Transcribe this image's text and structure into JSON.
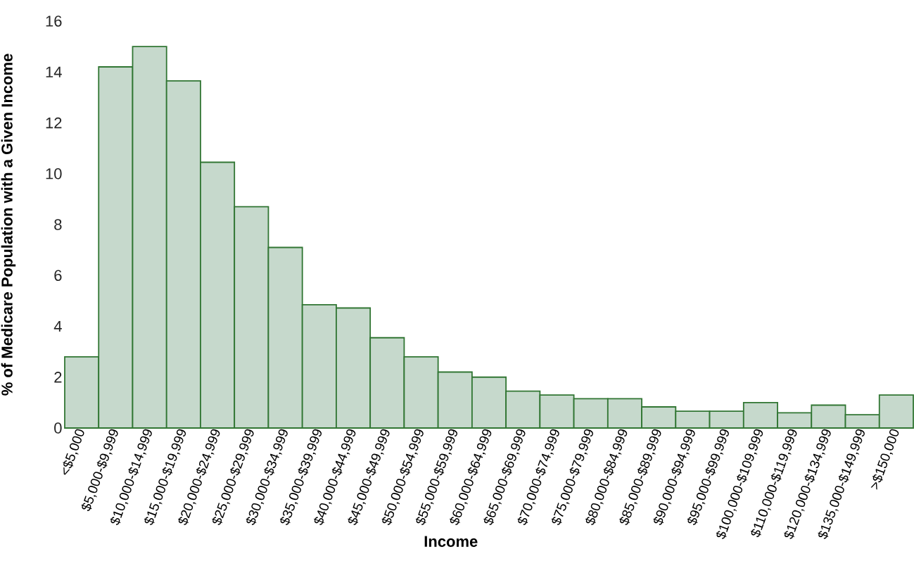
{
  "chart_data": {
    "type": "bar",
    "xlabel": "Income",
    "ylabel": "% of Medicare Population with a Given Income",
    "categories": [
      "<$5,000",
      "$5,000-$9,999",
      "$10,000-$14,999",
      "$15,000-$19,999",
      "$20,000-$24,999",
      "$25,000-$29,999",
      "$30,000-$34,999",
      "$35,000-$39,999",
      "$40,000-$44,999",
      "$45,000-$49,999",
      "$50,000-$54,999",
      "$55,000-$59,999",
      "$60,000-$64,999",
      "$65,000-$69,999",
      "$70,000-$74,999",
      "$75,000-$79,999",
      "$80,000-$84,999",
      "$85,000-$89,999",
      "$90,000-$94,999",
      "$95,000-$99,999",
      "$100,000-$109,999",
      "$110,000-$119,999",
      "$120,000-$134,999",
      "$135,000-$149,999",
      ">$150,000"
    ],
    "values": [
      2.8,
      14.2,
      15.0,
      13.65,
      10.45,
      8.7,
      7.1,
      4.85,
      4.72,
      3.55,
      2.8,
      2.2,
      2.0,
      1.45,
      1.3,
      1.15,
      1.15,
      0.83,
      0.66,
      0.66,
      1.0,
      0.6,
      0.9,
      0.52,
      1.3
    ],
    "color": "#c6d9cc",
    "ylim": [
      0,
      16
    ],
    "yticks": [
      0,
      2,
      4,
      6,
      8,
      10,
      12,
      14,
      16
    ]
  }
}
